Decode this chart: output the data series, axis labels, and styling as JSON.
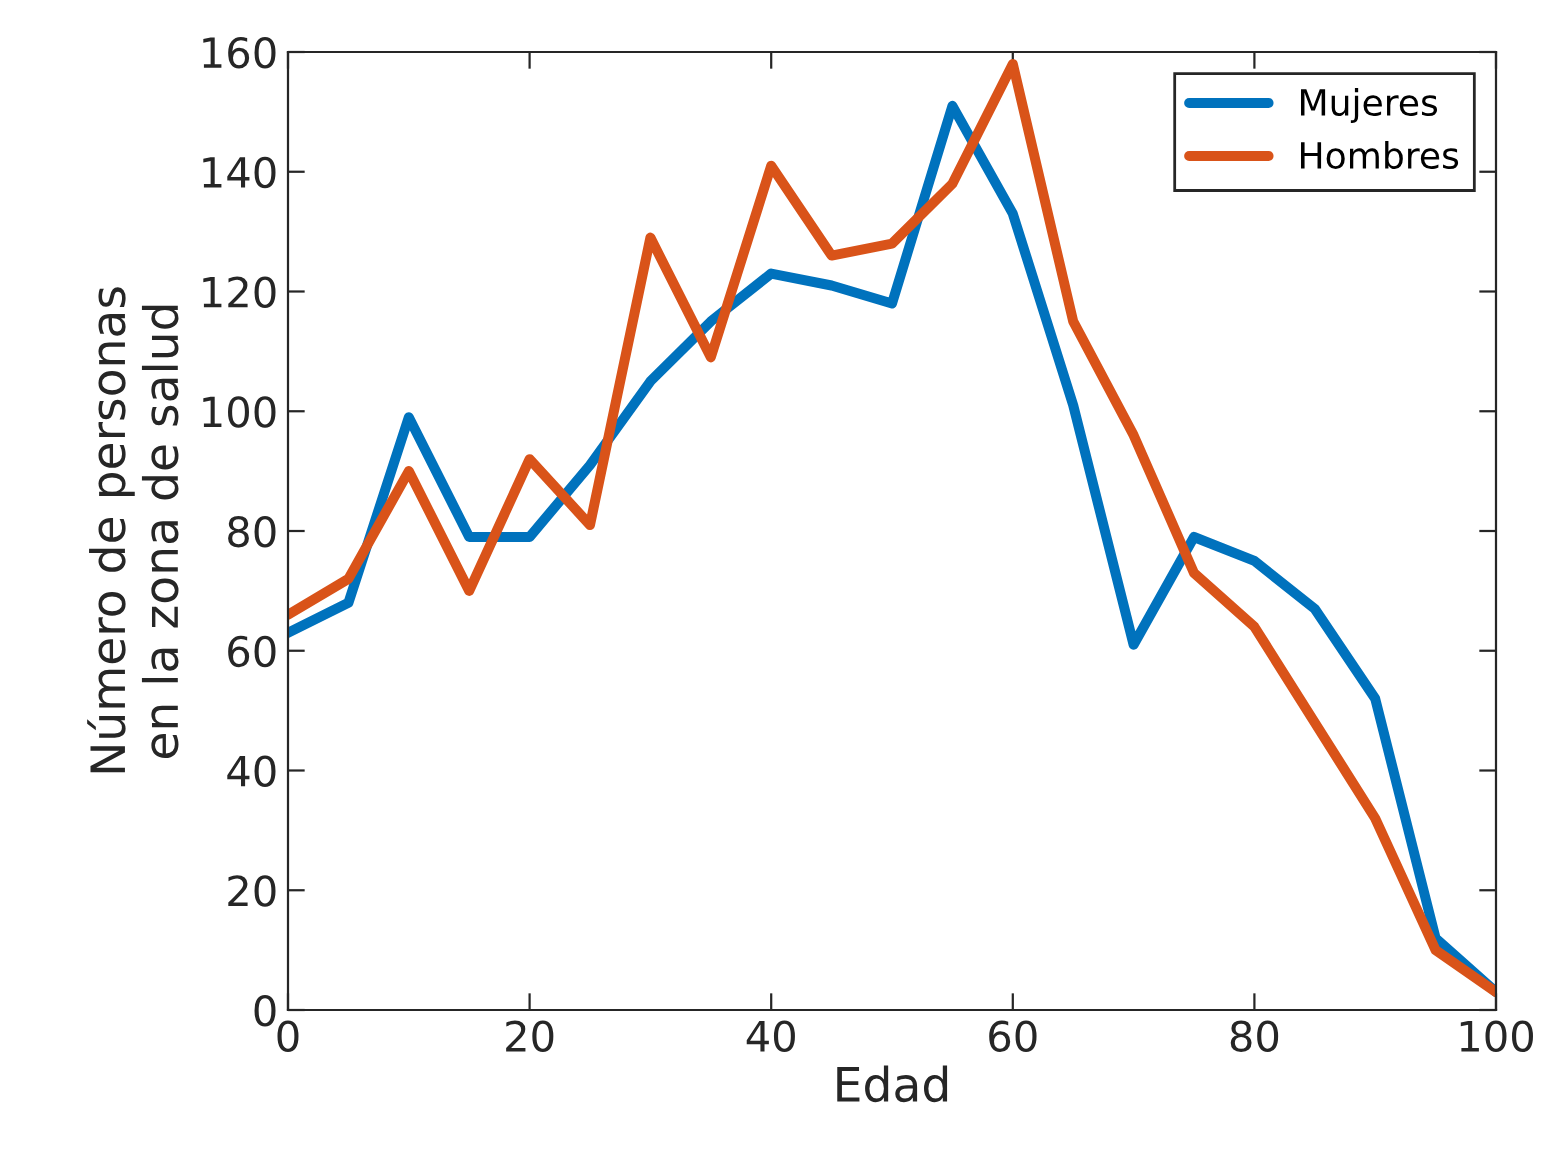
{
  "chart_data": {
    "type": "line",
    "xlabel": "Edad",
    "ylabel": "Número de personas\nen la zona de salud",
    "x": [
      0,
      5,
      10,
      15,
      20,
      25,
      30,
      35,
      40,
      45,
      50,
      55,
      60,
      65,
      70,
      75,
      80,
      85,
      90,
      95,
      100
    ],
    "series": [
      {
        "name": "Mujeres",
        "color": "#0072bd",
        "values": [
          63,
          68,
          99,
          79,
          79,
          91,
          105,
          115,
          123,
          121,
          118,
          151,
          133,
          101,
          61,
          79,
          75,
          67,
          52,
          12,
          3
        ]
      },
      {
        "name": "Hombres",
        "color": "#d95319",
        "values": [
          66,
          72,
          90,
          70,
          92,
          81,
          129,
          109,
          141,
          126,
          128,
          138,
          158,
          115,
          96,
          73,
          64,
          48,
          32,
          10,
          3
        ]
      }
    ],
    "xlim": [
      0,
      100
    ],
    "xticks": [
      0,
      20,
      40,
      60,
      80,
      100
    ],
    "ylim": [
      0,
      160
    ],
    "yticks": [
      0,
      20,
      40,
      60,
      80,
      100,
      120,
      140,
      160
    ],
    "grid": false,
    "legend": "top right",
    "marker": "none",
    "line_style": "solid"
  }
}
